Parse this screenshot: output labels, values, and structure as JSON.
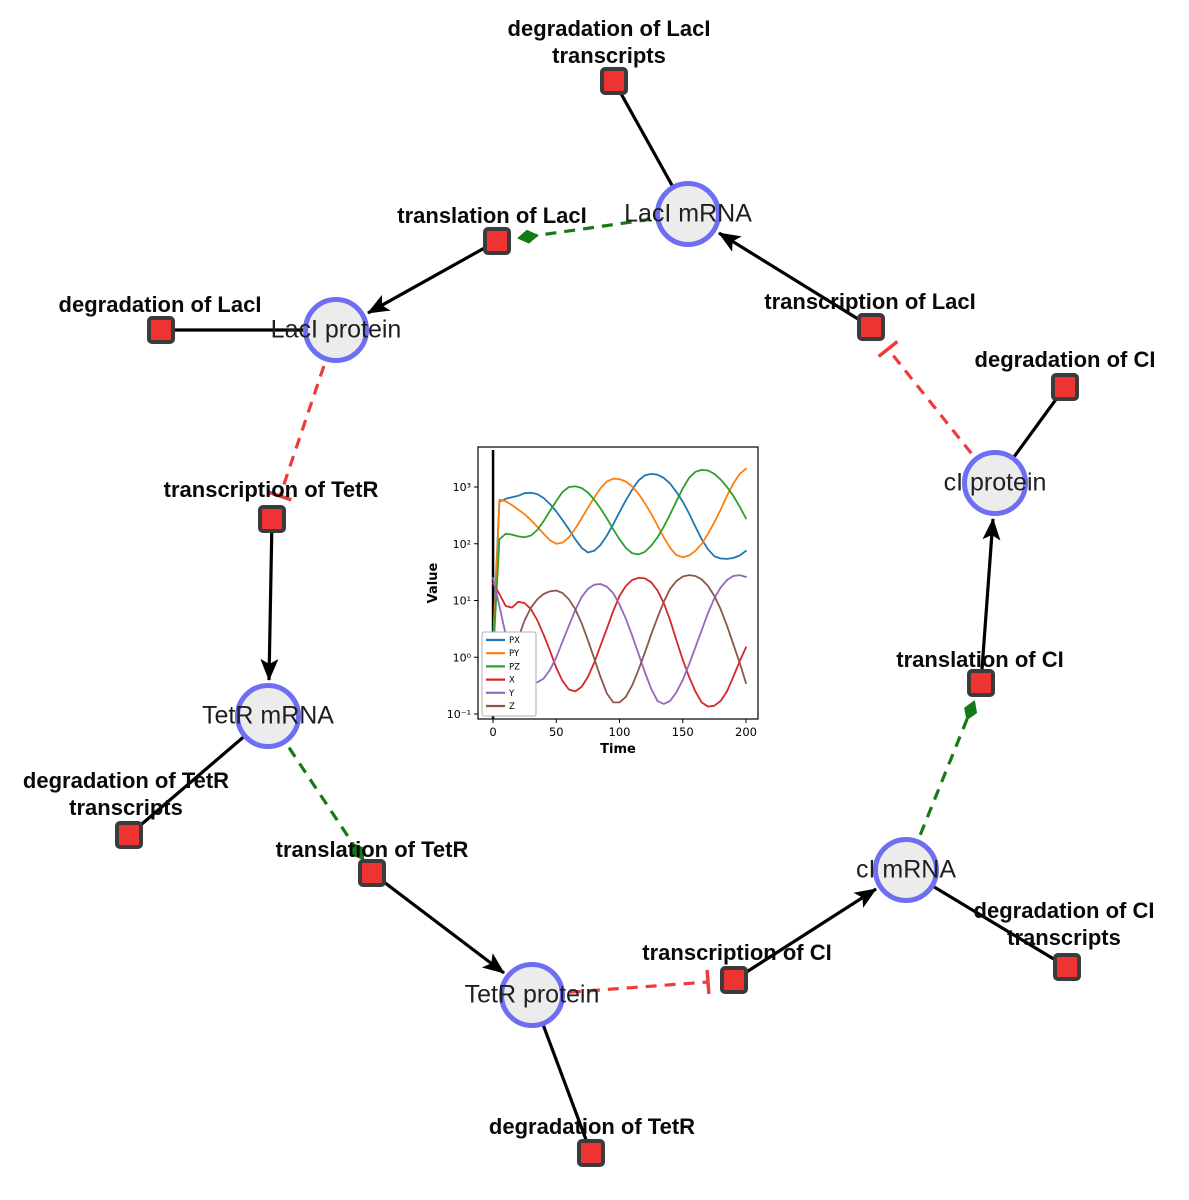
{
  "graph": {
    "species": [
      {
        "id": "laci-mrna",
        "label": "LacI mRNA"
      },
      {
        "id": "laci-protein",
        "label": "LacI protein"
      },
      {
        "id": "tetr-mrna",
        "label": "TetR mRNA"
      },
      {
        "id": "tetr-protein",
        "label": "TetR protein"
      },
      {
        "id": "ci-mrna",
        "label": "cI mRNA"
      },
      {
        "id": "ci-protein",
        "label": "cI protein"
      }
    ],
    "reactions": [
      {
        "id": "degradation-of-laci-transcripts",
        "lines": [
          "degradation of LacI",
          "transcripts"
        ]
      },
      {
        "id": "translation-of-laci",
        "lines": [
          "translation of LacI"
        ]
      },
      {
        "id": "degradation-of-laci",
        "lines": [
          "degradation of LacI"
        ]
      },
      {
        "id": "transcription-of-tetr",
        "lines": [
          "transcription of TetR"
        ]
      },
      {
        "id": "degradation-of-tetr-transcripts",
        "lines": [
          "degradation of TetR",
          "transcripts"
        ]
      },
      {
        "id": "translation-of-tetr",
        "lines": [
          "translation of TetR"
        ]
      },
      {
        "id": "degradation-of-tetr",
        "lines": [
          "degradation of TetR"
        ]
      },
      {
        "id": "transcription-of-ci",
        "lines": [
          "transcription of CI"
        ]
      },
      {
        "id": "degradation-of-ci-transcripts",
        "lines": [
          "degradation of CI",
          "transcripts"
        ]
      },
      {
        "id": "translation-of-ci",
        "lines": [
          "translation of CI"
        ]
      },
      {
        "id": "degradation-of-ci",
        "lines": [
          "degradation of CI"
        ]
      },
      {
        "id": "transcription-of-laci",
        "lines": [
          "transcription of LacI"
        ]
      }
    ],
    "colors": {
      "species_fill": "#ececec",
      "species_border": "#6e6ef2",
      "reaction_fill": "#ee3333",
      "reaction_border": "#3b3b3b",
      "edge": "#000000",
      "modifier_edge": "#157a15",
      "inhibition_edge": "#f03b3b"
    }
  },
  "chart_data": {
    "type": "line",
    "title": "",
    "xlabel": "Time",
    "ylabel": "Value",
    "yscale": "log",
    "x_ticks": [
      0,
      50,
      100,
      150,
      200
    ],
    "y_ticks_log10": [
      -1,
      0,
      1,
      2,
      3
    ],
    "y_tick_labels": [
      "10⁻¹",
      "10⁰",
      "10¹",
      "10²",
      "10³"
    ],
    "xlim": [
      -11.9,
      209.5
    ],
    "ylim_log10": [
      -1.088,
      3.705
    ],
    "grid": false,
    "legend_position": "lower left",
    "vline_x": 0,
    "colors": [
      "#1f77b4",
      "#ff7f0e",
      "#2ca02c",
      "#d62728",
      "#9467bd",
      "#8c564b"
    ],
    "x": [
      0,
      5,
      10,
      15,
      20,
      25,
      30,
      35,
      40,
      45,
      50,
      55,
      60,
      65,
      70,
      75,
      80,
      85,
      90,
      95,
      100,
      105,
      110,
      115,
      120,
      125,
      130,
      135,
      140,
      145,
      150,
      155,
      160,
      165,
      170,
      175,
      180,
      185,
      190,
      195,
      200
    ],
    "series": [
      {
        "name": "PX",
        "values": [
          2,
          550,
          620,
          660,
          700,
          780,
          790,
          750,
          640,
          500,
          370,
          260,
          180,
          120,
          85,
          70,
          75,
          95,
          140,
          220,
          360,
          580,
          900,
          1300,
          1600,
          1700,
          1650,
          1450,
          1150,
          820,
          550,
          340,
          200,
          120,
          80,
          60,
          55,
          54,
          56,
          62,
          75
        ]
      },
      {
        "name": "PY",
        "values": [
          1,
          600,
          560,
          480,
          400,
          330,
          260,
          200,
          150,
          115,
          100,
          105,
          130,
          185,
          280,
          430,
          650,
          950,
          1250,
          1400,
          1380,
          1250,
          1020,
          760,
          520,
          340,
          210,
          130,
          85,
          63,
          58,
          62,
          75,
          100,
          150,
          240,
          400,
          700,
          1150,
          1700,
          2100
        ]
      },
      {
        "name": "PZ",
        "values": [
          1,
          120,
          150,
          145,
          135,
          130,
          140,
          175,
          250,
          380,
          570,
          820,
          1000,
          1030,
          960,
          800,
          600,
          420,
          280,
          180,
          120,
          85,
          68,
          65,
          72,
          92,
          130,
          200,
          330,
          560,
          950,
          1450,
          1850,
          2000,
          1950,
          1700,
          1350,
          1000,
          700,
          450,
          280
        ]
      },
      {
        "name": "X",
        "values": [
          20,
          13,
          8,
          7.5,
          9.5,
          9,
          7,
          4.5,
          2.5,
          1.3,
          0.65,
          0.38,
          0.27,
          0.25,
          0.3,
          0.45,
          0.8,
          1.6,
          3.2,
          6.5,
          12,
          18,
          23,
          25,
          24.5,
          21,
          15,
          9,
          4.5,
          2,
          0.9,
          0.45,
          0.25,
          0.16,
          0.135,
          0.14,
          0.17,
          0.25,
          0.45,
          0.85,
          1.5
        ]
      },
      {
        "name": "Y",
        "values": [
          25,
          8,
          2.5,
          1.1,
          0.65,
          0.45,
          0.37,
          0.36,
          0.42,
          0.6,
          1.0,
          1.9,
          3.6,
          6.8,
          11.5,
          16,
          19,
          19.5,
          17.5,
          13.5,
          8.5,
          4.8,
          2.4,
          1.15,
          0.55,
          0.28,
          0.17,
          0.15,
          0.17,
          0.24,
          0.4,
          0.75,
          1.5,
          3,
          6,
          11,
          17,
          23,
          27,
          28,
          26
        ]
      },
      {
        "name": "Z",
        "values": [
          0.1,
          0.12,
          0.3,
          0.9,
          2.2,
          4.5,
          7.5,
          10.5,
          13,
          14.5,
          15,
          13.5,
          10.5,
          7,
          4,
          2,
          0.95,
          0.45,
          0.23,
          0.16,
          0.16,
          0.2,
          0.32,
          0.6,
          1.2,
          2.5,
          5,
          9.5,
          16,
          22,
          26.5,
          28,
          27,
          23.5,
          18,
          12,
          7,
          3.6,
          1.7,
          0.8,
          0.35
        ]
      }
    ]
  }
}
